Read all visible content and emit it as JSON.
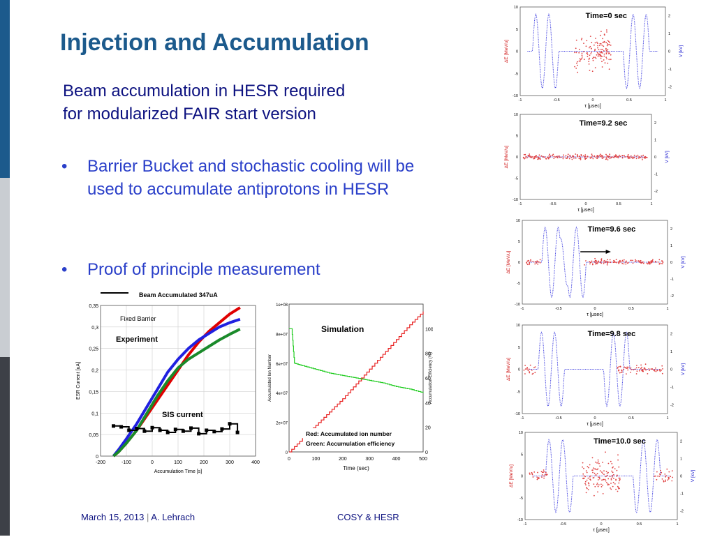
{
  "slide": {
    "title": "Injection and Accumulation",
    "subtitle_lines": [
      "Beam accumulation in HESR required",
      "for modularized FAIR start version"
    ],
    "bullets": [
      {
        "symbol": "•",
        "lines": [
          "Barrier Bucket and stochastic cooling will be",
          "used to accumulate antiprotons in HESR"
        ]
      },
      {
        "symbol": "•",
        "lines": [
          "Proof of principle measurement"
        ]
      }
    ],
    "footer": {
      "date": "March 15, 2013",
      "separator": "|",
      "author": "A. Lehrach",
      "center": "COSY & HESR"
    },
    "colors": {
      "title": "#1c5a8c",
      "subtitle": "#0d1280",
      "bullets": "#2a3fc9",
      "sidebar_top": "#1c5a8c",
      "sidebar_mid": "#c9cdd2",
      "sidebar_bottom": "#3d4047"
    }
  },
  "chart_data": [
    {
      "id": "experiment",
      "type": "line",
      "title": "Beam Accumulated 347uA",
      "xlabel": "Accumulation Time [s]",
      "ylabel": "ESR Current [uA]",
      "xlim": [
        -200,
        400
      ],
      "ylim": [
        0,
        0.35
      ],
      "x_ticks": [
        "-200",
        "-100",
        "0",
        "100",
        "200",
        "300",
        "400"
      ],
      "y_ticks": [
        "0",
        "0,05",
        "0,1",
        "0,15",
        "0,2",
        "0,25",
        "0,3",
        "0,35"
      ],
      "annotations": [
        "Fixed Barrier",
        "Experiment",
        "SIS current"
      ],
      "grid": true,
      "series": [
        {
          "color": "#e00000",
          "x": [
            -150,
            -130,
            -100,
            -60,
            -20,
            20,
            60,
            100,
            140,
            180,
            220,
            260,
            300,
            340
          ],
          "y": [
            0,
            0.01,
            0.03,
            0.06,
            0.095,
            0.13,
            0.165,
            0.2,
            0.235,
            0.265,
            0.29,
            0.31,
            0.33,
            0.345
          ]
        },
        {
          "color": "#2020e0",
          "x": [
            -150,
            -130,
            -100,
            -60,
            -20,
            20,
            60,
            100,
            140,
            180,
            220,
            260,
            300,
            340
          ],
          "y": [
            0,
            0.015,
            0.04,
            0.075,
            0.115,
            0.155,
            0.195,
            0.225,
            0.25,
            0.27,
            0.285,
            0.3,
            0.31,
            0.318
          ]
        },
        {
          "color": "#1a8a2a",
          "x": [
            -150,
            -130,
            -100,
            -60,
            -20,
            20,
            60,
            100,
            140,
            180,
            220,
            260,
            300,
            340
          ],
          "y": [
            0,
            0.01,
            0.03,
            0.06,
            0.1,
            0.14,
            0.175,
            0.205,
            0.225,
            0.24,
            0.255,
            0.27,
            0.283,
            0.295
          ]
        },
        {
          "color": "#000000",
          "x": [
            -150,
            -120,
            -90,
            -60,
            -30,
            0,
            30,
            60,
            90,
            120,
            150,
            180,
            210,
            240,
            270,
            300,
            330
          ],
          "y": [
            0.07,
            0.068,
            0.06,
            0.064,
            0.058,
            0.066,
            0.06,
            0.055,
            0.062,
            0.058,
            0.065,
            0.052,
            0.06,
            0.057,
            0.063,
            0.075,
            0.055
          ]
        }
      ]
    },
    {
      "id": "simulation",
      "type": "line",
      "title": "Simulation",
      "xlabel": "Time (sec)",
      "ylabel": "Accumulated Ion Number",
      "y2label": "Accumulation Efficiency (%)",
      "xlim": [
        0,
        500
      ],
      "ylim": [
        0,
        100000000.0
      ],
      "y2lim": [
        0,
        120
      ],
      "x_ticks": [
        "0",
        "100",
        "200",
        "300",
        "400",
        "500"
      ],
      "y_ticks": [
        "0",
        "2e+07",
        "4e+07",
        "6e+07",
        "8e+07",
        "1e+08"
      ],
      "y2_ticks": [
        "0",
        "20",
        "40",
        "60",
        "80",
        "100"
      ],
      "legend_text": [
        "Red: Accumulated ion number",
        "Green: Accumulation efficiency"
      ],
      "series": [
        {
          "color": "#e82020",
          "axis": "left",
          "x": [
            0,
            50,
            100,
            150,
            200,
            250,
            300,
            350,
            400,
            450,
            500
          ],
          "y": [
            0,
            9000000.0,
            18000000.0,
            27000000.0,
            36000000.0,
            46000000.0,
            56000000.0,
            66000000.0,
            76000000.0,
            86000000.0,
            95000000.0
          ]
        },
        {
          "color": "#22cc22",
          "axis": "right",
          "x": [
            0,
            10,
            20,
            50,
            100,
            150,
            200,
            250,
            300,
            350,
            400,
            450,
            500
          ],
          "y": [
            100,
            100,
            72,
            70,
            67,
            64,
            62,
            60,
            58,
            56,
            53,
            51,
            48
          ]
        }
      ]
    },
    {
      "id": "phase-space",
      "type": "scatter",
      "xlabel": "τ [μsec]",
      "ylabel": "ΔE [MeV/u]",
      "y2label": "V [kV]",
      "xlim": [
        -1,
        1
      ],
      "ylim": [
        -10,
        10
      ],
      "y2lim": [
        -2.5,
        2.5
      ],
      "x_ticks": [
        "-1",
        "-0.5",
        "0",
        "0.5",
        "1"
      ],
      "y_ticks": [
        "10",
        "5",
        "0",
        "-5",
        "-10"
      ],
      "y2_ticks": [
        "2",
        "1",
        "0",
        "-1",
        "-2"
      ],
      "panels": [
        {
          "label": "Time=0 sec",
          "voltage_pulses": [
            {
              "center": -0.65,
              "sign": 1
            },
            {
              "center": 0.6,
              "sign": -1
            }
          ],
          "particles": [
            {
              "x0": -0.25,
              "x1": 0.25,
              "spread": 5.5
            }
          ]
        },
        {
          "label": "Time=9.2 sec",
          "voltage_pulses": [],
          "particles": [
            {
              "x0": -0.95,
              "x1": 0.95,
              "spread": 0.8
            }
          ]
        },
        {
          "label": "Time=9.6 sec",
          "voltage_pulses": [
            {
              "center": -0.55,
              "sign": 1
            },
            {
              "center": -0.3,
              "sign": 1
            }
          ],
          "particles": [
            {
              "x0": -0.95,
              "x1": -0.75,
              "spread": 0.8
            },
            {
              "x0": -0.15,
              "x1": 0.95,
              "spread": 1.0
            }
          ]
        },
        {
          "label": "Time=9.8 sec",
          "voltage_pulses": [
            {
              "center": -0.6,
              "sign": 1
            },
            {
              "center": 0.3,
              "sign": -1
            }
          ],
          "particles": [
            {
              "x0": -0.98,
              "x1": -0.82,
              "spread": 1.5
            },
            {
              "x0": 0.3,
              "x1": 0.95,
              "spread": 1.5
            }
          ]
        },
        {
          "label": "Time=10.0 sec",
          "voltage_pulses": [
            {
              "center": -0.55,
              "sign": 1
            },
            {
              "center": 0.6,
              "sign": -1
            }
          ],
          "particles": [
            {
              "x0": -0.95,
              "x1": -0.7,
              "spread": 2.0
            },
            {
              "x0": -0.25,
              "x1": 0.25,
              "spread": 6.0
            },
            {
              "x0": 0.7,
              "x1": 0.95,
              "spread": 2.0
            }
          ]
        }
      ]
    }
  ]
}
